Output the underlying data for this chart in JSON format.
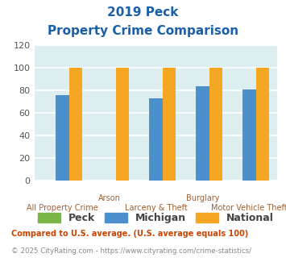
{
  "title_line1": "2019 Peck",
  "title_line2": "Property Crime Comparison",
  "categories": [
    "All Property Crime",
    "Arson",
    "Larceny & Theft",
    "Burglary",
    "Motor Vehicle Theft"
  ],
  "x_labels_top": [
    "",
    "Arson",
    "",
    "Burglary",
    ""
  ],
  "x_labels_bottom": [
    "All Property Crime",
    "",
    "Larceny & Theft",
    "",
    "Motor Vehicle Theft"
  ],
  "peck_values": [
    0,
    0,
    0,
    0,
    0
  ],
  "michigan_values": [
    76,
    0,
    73,
    84,
    81
  ],
  "national_values": [
    100,
    100,
    100,
    100,
    100
  ],
  "peck_color": "#7ab648",
  "michigan_color": "#4c8fcd",
  "national_color": "#f5a623",
  "ylim": [
    0,
    120
  ],
  "yticks": [
    0,
    20,
    40,
    60,
    80,
    100,
    120
  ],
  "bg_color": "#ddeef0",
  "grid_color": "#ffffff",
  "title_color": "#1a5fa8",
  "xlabel_color": "#a06030",
  "legend_label_color": "#444444",
  "footnote1": "Compared to U.S. average. (U.S. average equals 100)",
  "footnote2": "© 2025 CityRating.com - https://www.cityrating.com/crime-statistics/",
  "footnote1_color": "#cc4400",
  "footnote2_color": "#888888"
}
